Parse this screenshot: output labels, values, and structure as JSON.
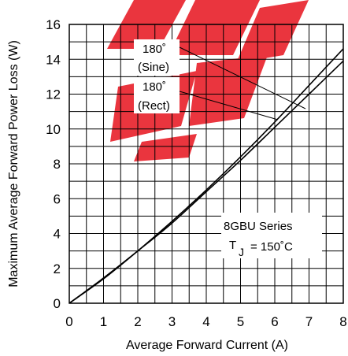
{
  "chart_data": {
    "type": "line",
    "xlabel": "Average Forward Current (A)",
    "ylabel": "Maximum Average Forward Power Loss (W)",
    "xlim": [
      0,
      8
    ],
    "ylim": [
      0,
      16
    ],
    "x_ticks": [
      "0",
      "1",
      "2",
      "3",
      "4",
      "5",
      "6",
      "7",
      "8"
    ],
    "y_ticks": [
      "0",
      "2",
      "4",
      "6",
      "8",
      "10",
      "12",
      "14",
      "16"
    ],
    "grid": true,
    "series": [
      {
        "name": "180˚ (Sine)",
        "x": [
          0,
          1,
          2,
          3,
          4,
          5,
          6,
          7,
          8
        ],
        "y": [
          0,
          1.4,
          3.0,
          4.7,
          6.5,
          8.4,
          10.4,
          12.5,
          14.6
        ]
      },
      {
        "name": "180˚ (Rect)",
        "x": [
          0,
          1,
          2,
          3,
          4,
          5,
          6,
          7,
          8
        ],
        "y": [
          0,
          1.45,
          3.0,
          4.6,
          6.4,
          8.2,
          10.1,
          12.0,
          13.9
        ]
      }
    ],
    "annotations": {
      "sine_line1": "180˚",
      "sine_line2": "(Sine)",
      "rect_line1": "180˚",
      "rect_line2": "(Rect)",
      "series_label": "8GBU  Series",
      "temp_T": "T",
      "temp_sub": "J",
      "temp_value": "= 150˚C"
    },
    "watermark_color": "#e8202a"
  }
}
